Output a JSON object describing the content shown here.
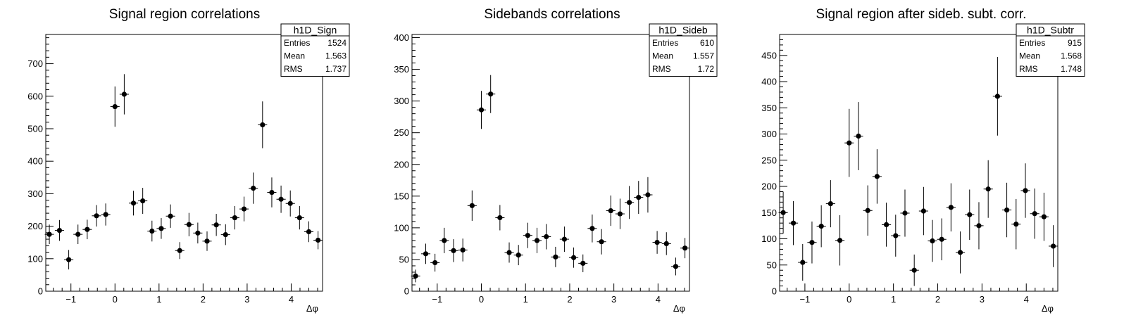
{
  "chart_data": [
    {
      "type": "scatter",
      "title": "Signal region correlations",
      "xlabel": "Δφ",
      "xlim": [
        -1.571,
        4.712
      ],
      "ylim": [
        0,
        790
      ],
      "yticks": [
        0,
        100,
        200,
        300,
        400,
        500,
        600,
        700
      ],
      "xticks": [
        -1,
        0,
        1,
        2,
        3,
        4
      ],
      "grid": false,
      "stats": {
        "name": "h1D_Sign",
        "entries": "1524",
        "mean": "1.563",
        "rms": "1.737"
      },
      "series": [
        {
          "x": [
            -1.49,
            -1.26,
            -1.05,
            -0.84,
            -0.63,
            -0.42,
            -0.21,
            0.0,
            0.21,
            0.42,
            0.63,
            0.84,
            1.05,
            1.26,
            1.47,
            1.68,
            1.88,
            2.09,
            2.3,
            2.51,
            2.72,
            2.93,
            3.14,
            3.35,
            3.56,
            3.77,
            3.98,
            4.19,
            4.4,
            4.61
          ],
          "y": [
            175,
            187,
            97,
            175,
            190,
            232,
            236,
            568,
            606,
            271,
            278,
            185,
            193,
            231,
            125,
            205,
            179,
            154,
            204,
            174,
            226,
            253,
            317,
            512,
            304,
            283,
            270,
            226,
            183,
            157
          ],
          "yerr": [
            30,
            32,
            30,
            30,
            30,
            33,
            34,
            62,
            62,
            38,
            40,
            32,
            32,
            36,
            26,
            36,
            32,
            30,
            34,
            32,
            36,
            38,
            48,
            72,
            46,
            42,
            40,
            36,
            32,
            28
          ]
        }
      ]
    },
    {
      "type": "scatter",
      "title": "Sidebands correlations",
      "xlabel": "Δφ",
      "xlim": [
        -1.571,
        4.712
      ],
      "ylim": [
        0,
        405
      ],
      "yticks": [
        0,
        50,
        100,
        150,
        200,
        250,
        300,
        350,
        400
      ],
      "xticks": [
        -1,
        0,
        1,
        2,
        3,
        4
      ],
      "grid": false,
      "stats": {
        "name": "h1D_Sideb",
        "entries": "610",
        "mean": "1.557",
        "rms": "1.72"
      },
      "series": [
        {
          "x": [
            -1.49,
            -1.26,
            -1.05,
            -0.84,
            -0.63,
            -0.42,
            -0.21,
            0.0,
            0.21,
            0.42,
            0.63,
            0.84,
            1.05,
            1.26,
            1.47,
            1.68,
            1.88,
            2.09,
            2.3,
            2.51,
            2.72,
            2.93,
            3.14,
            3.35,
            3.56,
            3.77,
            3.98,
            4.19,
            4.4,
            4.61
          ],
          "y": [
            24,
            59,
            45,
            80,
            64,
            65,
            135,
            286,
            311,
            116,
            61,
            57,
            88,
            80,
            86,
            54,
            82,
            53,
            44,
            99,
            78,
            127,
            122,
            140,
            148,
            152,
            77,
            75,
            39,
            68
          ],
          "yerr": [
            10,
            16,
            14,
            20,
            18,
            18,
            24,
            30,
            30,
            20,
            16,
            16,
            20,
            20,
            20,
            16,
            20,
            16,
            14,
            22,
            20,
            24,
            24,
            26,
            26,
            28,
            18,
            18,
            14,
            16
          ]
        }
      ]
    },
    {
      "type": "scatter",
      "title": "Signal region after sideb. subt. corr.",
      "xlabel": "Δφ",
      "xlim": [
        -1.571,
        4.712
      ],
      "ylim": [
        0,
        490
      ],
      "yticks": [
        0,
        50,
        100,
        150,
        200,
        250,
        300,
        350,
        400,
        450
      ],
      "xticks": [
        -1,
        0,
        1,
        2,
        3,
        4
      ],
      "grid": false,
      "stats": {
        "name": "h1D_Subtr",
        "entries": "915",
        "mean": "1.568",
        "rms": "1.748"
      },
      "series": [
        {
          "x": [
            -1.49,
            -1.26,
            -1.05,
            -0.84,
            -0.63,
            -0.42,
            -0.21,
            0.0,
            0.21,
            0.42,
            0.63,
            0.84,
            1.05,
            1.26,
            1.47,
            1.68,
            1.88,
            2.09,
            2.3,
            2.51,
            2.72,
            2.93,
            3.14,
            3.35,
            3.56,
            3.77,
            3.98,
            4.19,
            4.4,
            4.61
          ],
          "y": [
            150,
            130,
            55,
            93,
            124,
            167,
            97,
            283,
            296,
            154,
            219,
            127,
            106,
            149,
            40,
            153,
            96,
            99,
            160,
            74,
            146,
            125,
            195,
            372,
            155,
            128,
            192,
            148,
            142,
            86
          ],
          "yerr": [
            40,
            42,
            35,
            40,
            40,
            45,
            48,
            65,
            65,
            48,
            52,
            42,
            40,
            45,
            30,
            46,
            40,
            40,
            46,
            40,
            48,
            45,
            55,
            75,
            52,
            48,
            52,
            48,
            46,
            40
          ]
        }
      ]
    }
  ]
}
